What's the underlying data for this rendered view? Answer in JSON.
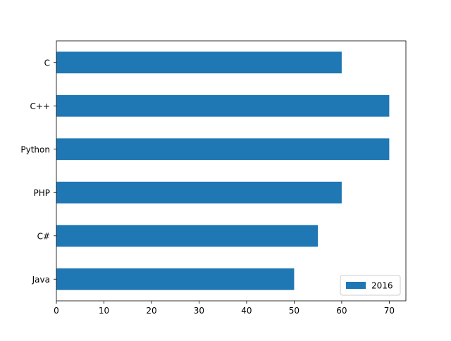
{
  "chart_data": {
    "type": "bar",
    "orientation": "horizontal",
    "categories": [
      "Java",
      "C#",
      "PHP",
      "Python",
      "C++",
      "C"
    ],
    "series": [
      {
        "name": "2016",
        "values": [
          50,
          55,
          60,
          70,
          70,
          60
        ],
        "color": "#1f77b4"
      }
    ],
    "xlim": [
      0,
      73.5
    ],
    "x_ticks": [
      0,
      10,
      20,
      30,
      40,
      50,
      60,
      70
    ],
    "grid": false,
    "legend_position": "lower-right"
  }
}
